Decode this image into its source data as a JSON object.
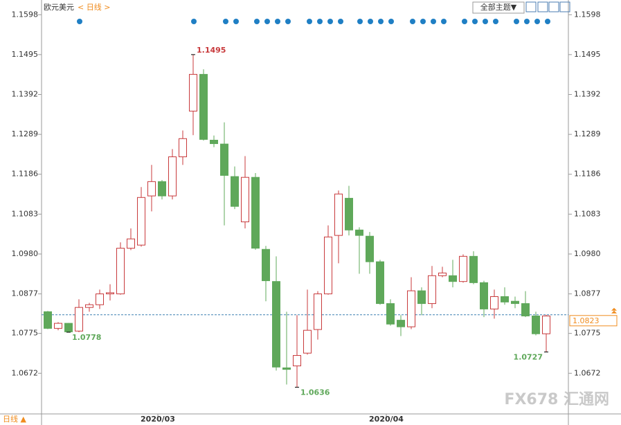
{
  "chart_data": {
    "type": "candlestick",
    "title": "欧元美元",
    "period": "< 日线 >",
    "theme_button": "全部主题▼",
    "period_footer": "日线 ▲",
    "watermark": "FX678 汇通网",
    "up_color": "#c8393b",
    "down_color": "#5fa85a",
    "open": [
      1.0831,
      1.0788,
      1.0801,
      1.0781,
      1.0842,
      1.0849,
      1.0877,
      1.0877,
      1.0995,
      1.1003,
      1.113,
      1.1167,
      1.113,
      1.1231,
      1.1349,
      1.1444,
      1.1274,
      1.1264,
      1.118,
      1.1063,
      1.1178,
      1.0992,
      1.0909,
      1.0686,
      1.0691,
      1.0724,
      1.0785,
      1.0877,
      1.1028,
      1.1124,
      1.1042,
      1.1026,
      1.096,
      1.0852,
      1.0809,
      1.0792,
      1.0885,
      1.0852,
      1.0924,
      1.0924,
      1.0909,
      1.0974,
      1.0906,
      1.0838,
      1.087,
      1.0858,
      1.0852,
      1.082,
      1.0774
    ],
    "high": [
      1.0833,
      1.0804,
      1.0802,
      1.0863,
      1.0854,
      1.0888,
      1.0902,
      1.101,
      1.1046,
      1.1153,
      1.121,
      1.1171,
      1.1251,
      1.1299,
      1.1495,
      1.1457,
      1.1286,
      1.132,
      1.1206,
      1.1233,
      1.1189,
      1.1001,
      1.0974,
      1.0831,
      1.0822,
      1.0888,
      1.0884,
      1.1054,
      1.1144,
      1.1156,
      1.1049,
      1.1037,
      1.0965,
      1.0863,
      1.0822,
      1.092,
      1.0894,
      1.0949,
      1.0947,
      1.0965,
      1.0979,
      1.0987,
      1.0911,
      1.0888,
      1.0894,
      1.087,
      1.0884,
      1.0831,
      1.0823
    ],
    "low": [
      1.0786,
      1.0783,
      1.0778,
      1.0778,
      1.0831,
      1.0838,
      1.086,
      1.0875,
      1.099,
      1.0999,
      1.109,
      1.1121,
      1.1121,
      1.121,
      1.1287,
      1.1273,
      1.1256,
      1.1054,
      1.1096,
      1.1046,
      1.0991,
      1.0858,
      1.0679,
      1.0643,
      1.0636,
      1.072,
      1.0759,
      1.0875,
      1.0956,
      1.1028,
      1.0929,
      1.0929,
      1.0849,
      1.0795,
      1.0768,
      1.0786,
      1.0822,
      1.084,
      1.092,
      1.0894,
      1.0906,
      1.0902,
      1.0817,
      1.0813,
      1.0849,
      1.084,
      1.0817,
      1.077,
      1.0727
    ],
    "close": [
      1.0788,
      1.0801,
      1.0779,
      1.0842,
      1.0849,
      1.0877,
      1.088,
      1.0995,
      1.1019,
      1.1126,
      1.1167,
      1.113,
      1.1231,
      1.1278,
      1.1444,
      1.1276,
      1.1265,
      1.1183,
      1.1103,
      1.1178,
      1.0995,
      1.0911,
      1.0688,
      1.0682,
      1.0718,
      1.0783,
      1.0877,
      1.1024,
      1.1135,
      1.1042,
      1.1028,
      1.096,
      1.0852,
      1.0799,
      1.0792,
      1.0885,
      1.0852,
      1.0924,
      1.0931,
      1.0909,
      1.0974,
      1.0906,
      1.0838,
      1.087,
      1.0856,
      1.0852,
      1.082,
      1.0774,
      1.082
    ],
    "last_price": 1.0823,
    "last_price_color": "#f08c1e",
    "annotations": [
      {
        "at": 14,
        "value": 1.1495,
        "color": "#c8393b"
      },
      {
        "at": 2,
        "value": 1.0778,
        "color": "#5fa85a"
      },
      {
        "at": 24,
        "value": 1.0636,
        "color": "#5fa85a"
      },
      {
        "at": 48,
        "value": 1.0727,
        "color": "#5fa85a"
      }
    ],
    "ylim": [
      1.0567,
      1.1636
    ],
    "yticks": [
      1.1598,
      1.1495,
      1.1392,
      1.1289,
      1.1186,
      1.1083,
      {
        "value": 1.098,
        "label": "1.0980"
      },
      1.0877,
      1.0775,
      1.0672
    ],
    "xticks": [
      {
        "value": 10.6,
        "label": "2020/03"
      },
      {
        "value": 32.6,
        "label": "2020/04"
      }
    ],
    "grid": false
  }
}
